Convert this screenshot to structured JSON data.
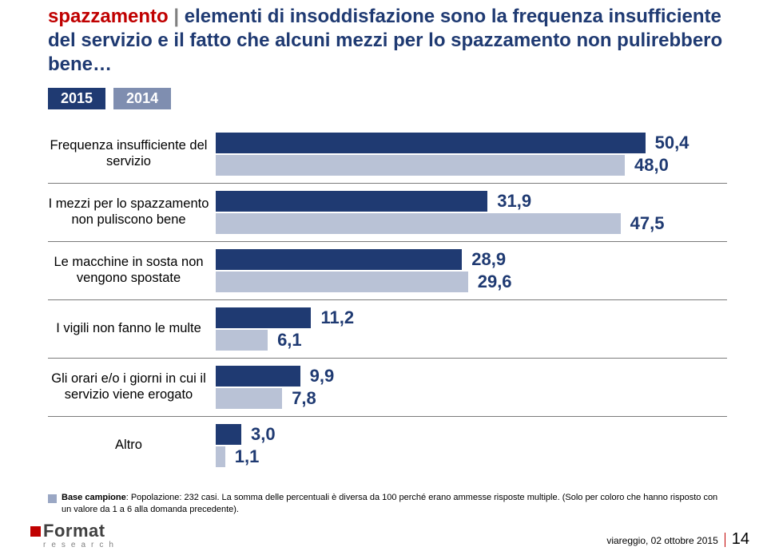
{
  "title": {
    "lead_word": "spazzamento",
    "lead_color": "#c00000",
    "separator": " | ",
    "separator_color": "#808080",
    "rest": "elementi di insoddisfazione sono la frequenza insufficiente del servizio e il fatto che alcuni mezzi per lo spazzamento non pulirebbero bene…",
    "rest_color": "#1f3a72",
    "fontsize": 24
  },
  "years": {
    "items": [
      {
        "label": "2015",
        "bg": "#1f3a72"
      },
      {
        "label": "2014",
        "bg": "#7f8eb0"
      }
    ],
    "text_color": "#ffffff"
  },
  "chart": {
    "type": "bar",
    "max": 60,
    "bar_colors": {
      "y2015": "#1f3a72",
      "y2014": "#b9c2d6"
    },
    "value_color": "#1f3a72",
    "value_fontsize": 22,
    "label_fontsize": 16.5,
    "row_divider_color": "#7a7a7a",
    "rows": [
      {
        "label": "Frequenza insufficiente del servizio",
        "v2015": "50,4",
        "n2015": 50.4,
        "v2014": "48,0",
        "n2014": 48.0
      },
      {
        "label": "I mezzi per lo spazzamento non puliscono bene",
        "v2015": "31,9",
        "n2015": 31.9,
        "v2014": "47,5",
        "n2014": 47.5
      },
      {
        "label": "Le macchine in sosta non vengono spostate",
        "v2015": "28,9",
        "n2015": 28.9,
        "v2014": "29,6",
        "n2014": 29.6
      },
      {
        "label": "I vigili non fanno le multe",
        "v2015": "11,2",
        "n2015": 11.2,
        "v2014": "6,1",
        "n2014": 6.1
      },
      {
        "label": "Gli orari e/o i giorni in cui il servizio viene erogato",
        "v2015": "9,9",
        "n2015": 9.9,
        "v2014": "7,8",
        "n2014": 7.8
      },
      {
        "label": "Altro",
        "v2015": "3,0",
        "n2015": 3.0,
        "v2014": "1,1",
        "n2014": 1.1
      }
    ]
  },
  "footnote": {
    "square_color": "#9aa7c4",
    "bold_label": "Base campione",
    "text": ": Popolazione: 232 casi. La somma delle percentuali è diversa da 100 perché erano ammesse risposte multiple. (Solo per coloro che hanno risposto con un valore da 1 a 6 alla domanda precedente).",
    "fontsize": 11
  },
  "footer": {
    "logo_square_color": "#c00000",
    "logo_name": "Format",
    "logo_sub": "research",
    "date_text": "viareggio, 02 ottobre 2015",
    "divider_color": "#c00000",
    "page_number": "14"
  }
}
